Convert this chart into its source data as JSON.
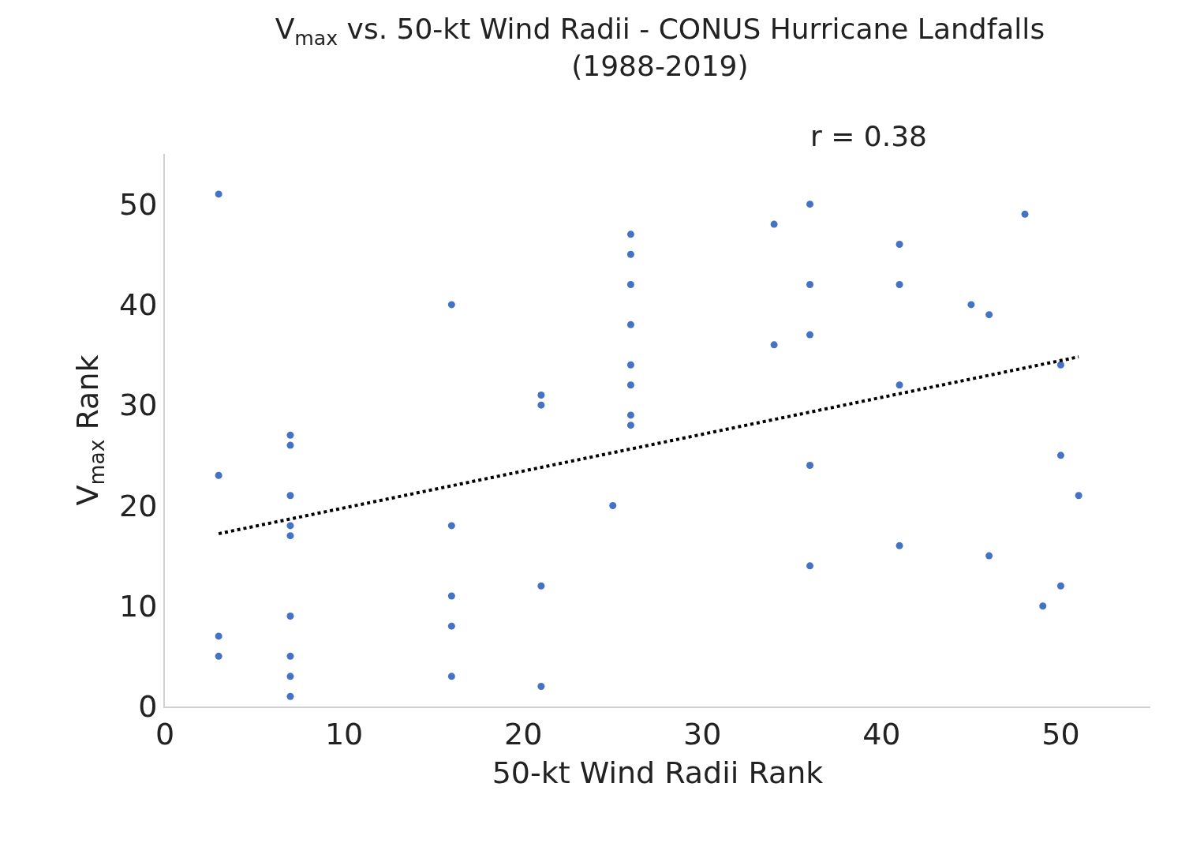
{
  "chart_data": {
    "type": "scatter",
    "title": "V$_{max}$ vs. 50-kt Wind Radii - CONUS Hurricane Landfalls\n(1988-2019)",
    "xlabel": "50-kt Wind Radii Rank",
    "ylabel": "V$_{max}$ Rank",
    "annotations": [
      "r = 0.38"
    ],
    "series": [
      {
        "color": "#4472c4",
        "marker": "circle",
        "x": [
          3,
          3,
          3,
          3,
          7,
          7,
          7,
          7,
          7,
          7,
          7,
          7,
          7,
          16,
          16,
          16,
          16,
          16,
          21,
          21,
          21,
          21,
          25,
          26,
          26,
          26,
          26,
          26,
          26,
          26,
          26,
          34,
          34,
          36,
          36,
          36,
          36,
          36,
          41,
          41,
          41,
          41,
          45,
          46,
          46,
          48,
          49,
          50,
          50,
          50,
          51
        ],
        "values": [
          51,
          23,
          7,
          5,
          27,
          26,
          21,
          18,
          17,
          9,
          5,
          3,
          1,
          40,
          18,
          11,
          8,
          3,
          31,
          30,
          12,
          2,
          20,
          47,
          45,
          42,
          38,
          34,
          32,
          29,
          28,
          48,
          36,
          50,
          42,
          37,
          24,
          14,
          46,
          42,
          32,
          16,
          40,
          39,
          15,
          49,
          10,
          34,
          25,
          12,
          21
        ]
      },
      {
        "type": "line",
        "color": "#000000",
        "line_style": "dotted",
        "marker": "none",
        "x": [
          3,
          51
        ],
        "values": [
          17.2,
          34.8
        ]
      }
    ],
    "xlim": [
      0,
      55
    ],
    "ylim": [
      0,
      55
    ],
    "xticks": [
      0,
      10,
      20,
      30,
      40,
      50
    ],
    "yticks": [
      0,
      10,
      20,
      30,
      40,
      50
    ],
    "legend": false
  }
}
